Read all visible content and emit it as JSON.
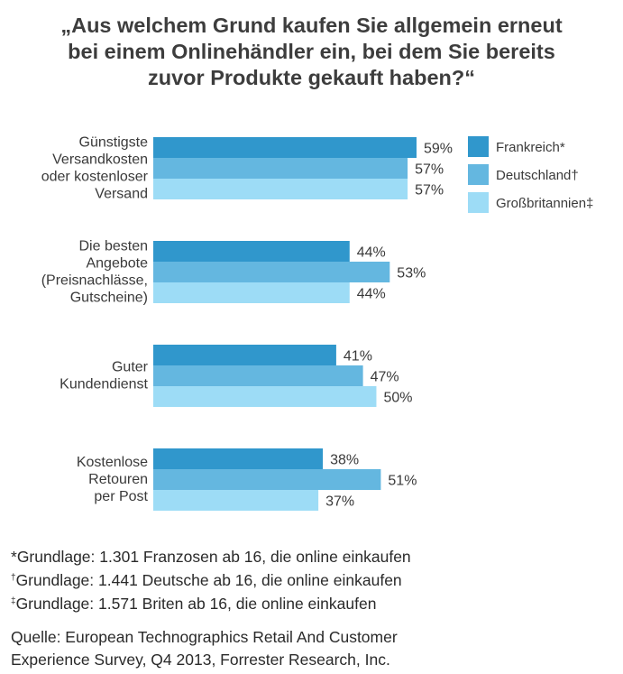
{
  "chart_data": {
    "type": "bar",
    "orientation": "horizontal",
    "title_lines": [
      "„Aus welchem Grund kaufen Sie allgemein erneut",
      "bei einem Onlinehändler ein, bei dem Sie bereits",
      "zuvor Produkte gekauft haben?“"
    ],
    "categories": [
      [
        "Günstigste",
        "Versandkosten",
        "oder kostenloser",
        "Versand"
      ],
      [
        "Die besten",
        "Angebote",
        "(Preisnachlässe,",
        "Gutscheine)"
      ],
      [
        "Guter",
        "Kundendienst"
      ],
      [
        "Kostenlose",
        "Retouren",
        "per Post"
      ]
    ],
    "series": [
      {
        "name": "Frankreich*",
        "color": "#3097cc",
        "values": [
          59,
          44,
          41,
          38
        ],
        "labels": [
          "59%",
          "44%",
          "41%",
          "38%"
        ]
      },
      {
        "name": "Deutschland†",
        "color": "#64b7e0",
        "values": [
          57,
          53,
          47,
          51
        ],
        "labels": [
          "57%",
          "53%",
          "47%",
          "51%"
        ]
      },
      {
        "name": "Großbritannien‡",
        "color": "#9ddcf6",
        "values": [
          57,
          44,
          50,
          37
        ],
        "labels": [
          "57%",
          "44%",
          "50%",
          "37%"
        ]
      }
    ],
    "value_unit": "%",
    "xlim": [
      0,
      60
    ],
    "grid": false,
    "axes_visible": false,
    "legend_position": "top-right"
  },
  "footnotes": [
    {
      "mark": "*",
      "superscript": false,
      "text": "Grundlage: 1.301 Franzosen ab 16, die online einkaufen"
    },
    {
      "mark": "†",
      "superscript": true,
      "text": "Grundlage: 1.441 Deutsche ab 16, die online einkaufen"
    },
    {
      "mark": "‡",
      "superscript": true,
      "text": "Grundlage: 1.571 Briten ab 16, die online einkaufen"
    }
  ],
  "source_lines": [
    "Quelle: European Technographics Retail And Customer",
    "Experience Survey, Q4 2013, Forrester Research, Inc."
  ]
}
